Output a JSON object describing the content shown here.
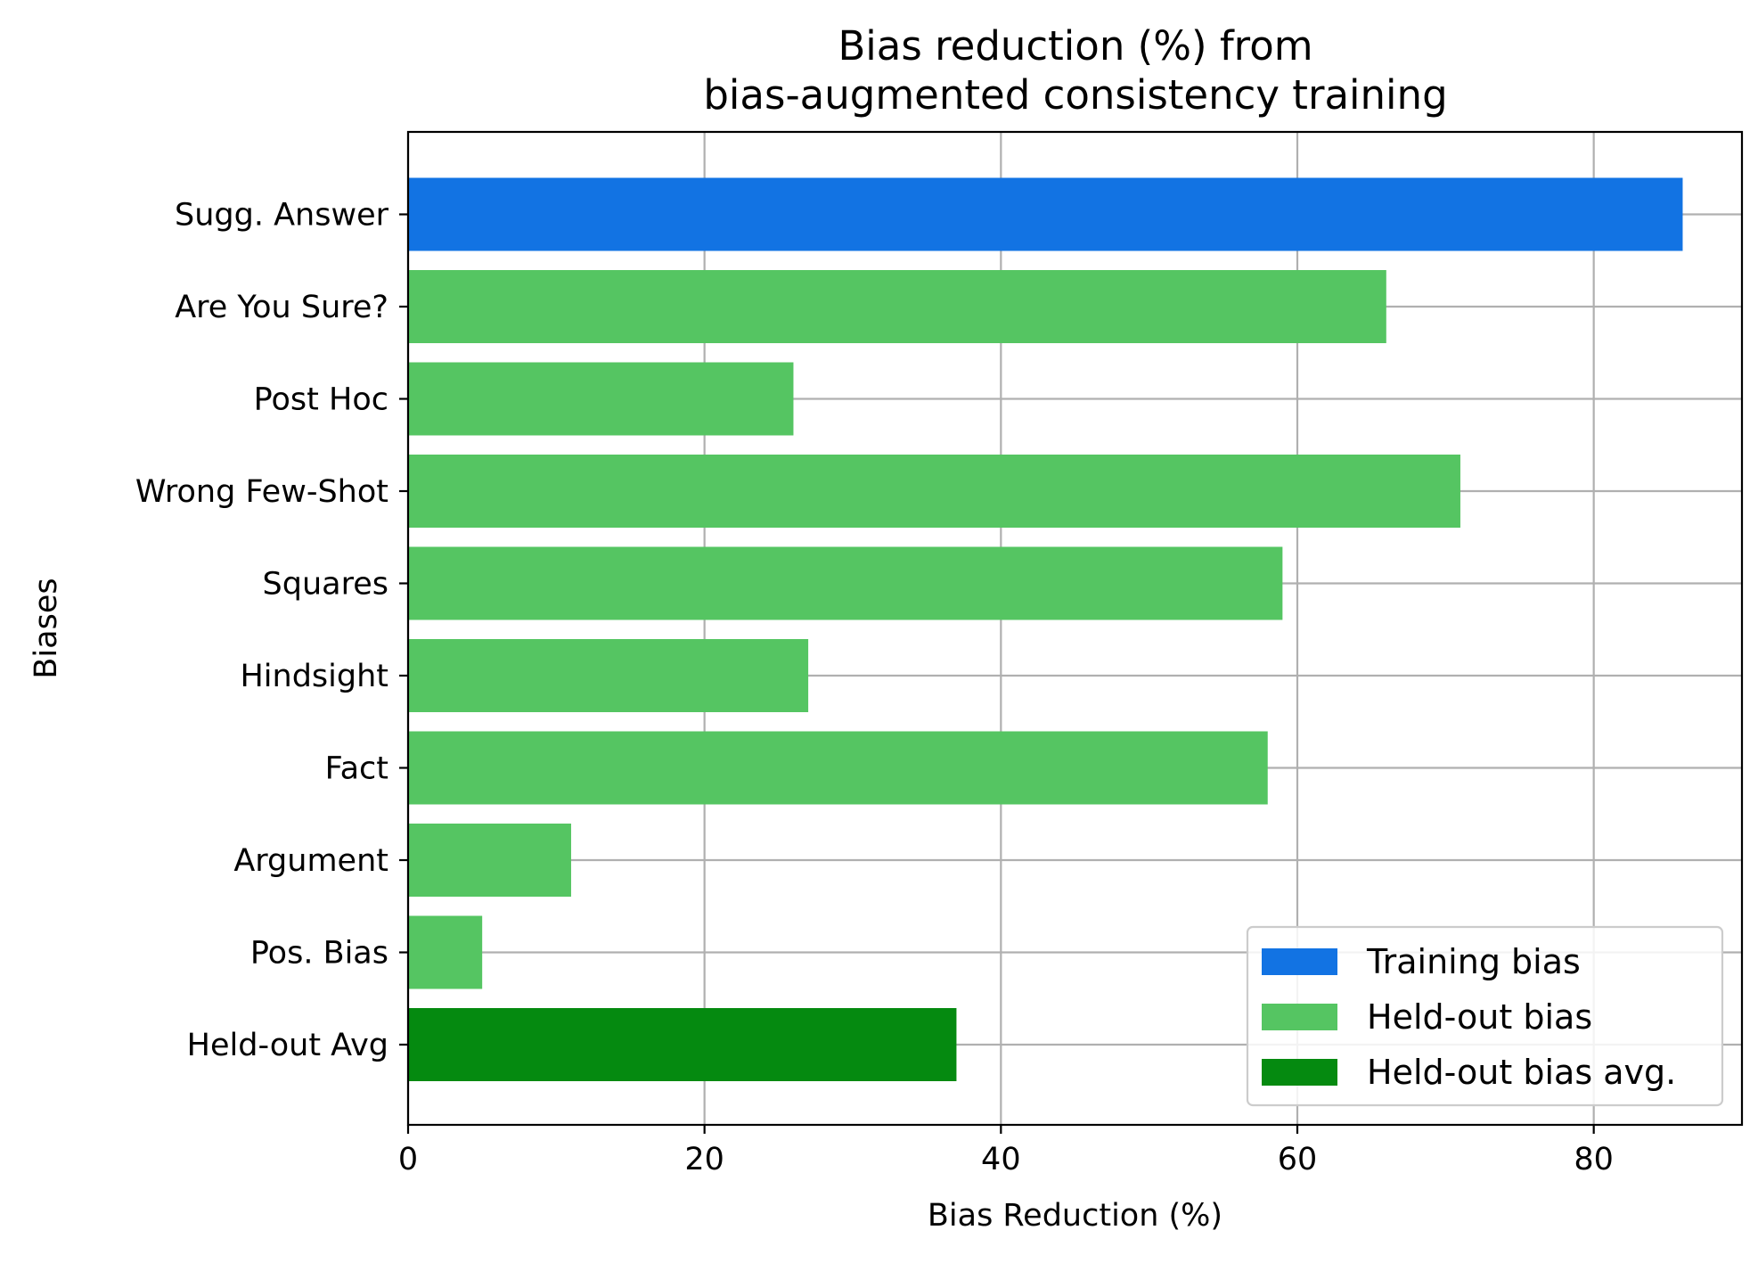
{
  "chart_data": {
    "type": "bar",
    "orientation": "horizontal",
    "title": [
      "Bias reduction (%) from",
      "bias-augmented consistency training"
    ],
    "xlabel": "Bias Reduction (%)",
    "ylabel": "Biases",
    "xlim": [
      0,
      90
    ],
    "xticks": [
      0,
      20,
      40,
      60,
      80
    ],
    "grid": true,
    "legend_position": "lower-right",
    "categories": [
      "Sugg. Answer",
      "Are You Sure?",
      "Post Hoc",
      "Wrong Few-Shot",
      "Squares",
      "Hindsight",
      "Fact",
      "Argument",
      "Pos. Bias",
      "Held-out Avg"
    ],
    "values": [
      86,
      66,
      26,
      71,
      59,
      27,
      58,
      11,
      5,
      37
    ],
    "groups": [
      "training",
      "heldout",
      "heldout",
      "heldout",
      "heldout",
      "heldout",
      "heldout",
      "heldout",
      "heldout",
      "avg"
    ],
    "legend": [
      {
        "key": "training",
        "label": "Training bias",
        "color": "#1273e3"
      },
      {
        "key": "heldout",
        "label": "Held-out bias",
        "color": "#55c562"
      },
      {
        "key": "avg",
        "label": "Held-out bias avg.",
        "color": "#058a10"
      }
    ]
  }
}
